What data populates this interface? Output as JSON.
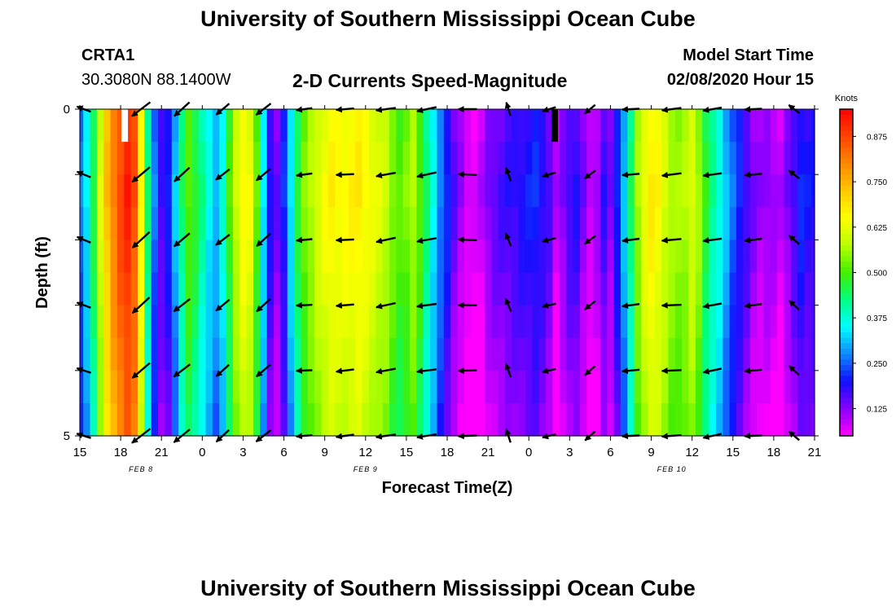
{
  "page": {
    "title_top": "University of Southern Mississippi Ocean Cube",
    "title_bottom": "University of Southern Mississippi Ocean Cube"
  },
  "header": {
    "station_id": "CRTA1",
    "station_coords": "30.3080N 88.1400W",
    "chart_title": "2-D Currents Speed-Magnitude",
    "model_label": "Model Start Time",
    "model_time": "02/08/2020 Hour 15"
  },
  "colors": {
    "bg": "#ffffff",
    "arrow": "#000000",
    "colormap": [
      "#ff00ff",
      "#8800ff",
      "#1010ff",
      "#1088ff",
      "#00ffff",
      "#00ff80",
      "#44ee00",
      "#b8ff00",
      "#ffff00",
      "#ffc800",
      "#ff8800",
      "#ff4400",
      "#ff0000"
    ]
  },
  "chart_data": {
    "type": "heatmap",
    "title": "2-D Currents Speed-Magnitude",
    "xlabel": "Forecast Time(Z)",
    "ylabel": "Depth (ft)",
    "x_tick_labels": [
      "15",
      "18",
      "21",
      "0",
      "3",
      "6",
      "9",
      "12",
      "15",
      "18",
      "21",
      "0",
      "3",
      "6",
      "9",
      "12",
      "15",
      "18",
      "21"
    ],
    "x_tick_hours": [
      0,
      3,
      6,
      9,
      12,
      15,
      18,
      21,
      24,
      27,
      30,
      33,
      36,
      39,
      42,
      45,
      48,
      51,
      54
    ],
    "xlim_hours": [
      0,
      54
    ],
    "date_labels": [
      {
        "text": "FEB 8",
        "hour": 4.5
      },
      {
        "text": "FEB 9",
        "hour": 21
      },
      {
        "text": "FEB 10",
        "hour": 43.5
      }
    ],
    "y_tick_labels": [
      "0",
      "5"
    ],
    "ylim": [
      0,
      5
    ],
    "depth_levels": [
      0,
      0.5,
      1,
      1.5,
      2,
      2.5,
      3,
      3.5,
      4,
      4.5
    ],
    "colorbar": {
      "label": "Knots",
      "ticks": [
        0.125,
        0.25,
        0.375,
        0.5,
        0.625,
        0.75,
        0.875
      ],
      "tick_labels": [
        "0.125",
        "0.250",
        "0.375",
        "0.500",
        "0.625",
        "0.750",
        "0.875"
      ],
      "range": [
        0.05,
        0.95
      ]
    },
    "speed_profile": [
      {
        "hour": 0,
        "speed": 0.25
      },
      {
        "hour": 0.5,
        "speed": 0.33
      },
      {
        "hour": 1,
        "speed": 0.45
      },
      {
        "hour": 1.5,
        "speed": 0.6
      },
      {
        "hour": 2,
        "speed": 0.72
      },
      {
        "hour": 2.5,
        "speed": 0.8
      },
      {
        "hour": 3,
        "speed": 0.86
      },
      {
        "hour": 3.5,
        "speed": 0.9
      },
      {
        "hour": 4,
        "speed": 0.85
      },
      {
        "hour": 4.5,
        "speed": 0.65
      },
      {
        "hour": 5,
        "speed": 0.42
      },
      {
        "hour": 5.5,
        "speed": 0.25
      },
      {
        "hour": 6,
        "speed": 0.16
      },
      {
        "hour": 6.5,
        "speed": 0.2
      },
      {
        "hour": 7,
        "speed": 0.3
      },
      {
        "hour": 7.5,
        "speed": 0.42
      },
      {
        "hour": 8,
        "speed": 0.5
      },
      {
        "hour": 8.5,
        "speed": 0.46
      },
      {
        "hour": 9,
        "speed": 0.4
      },
      {
        "hour": 9.5,
        "speed": 0.34
      },
      {
        "hour": 10,
        "speed": 0.3
      },
      {
        "hour": 10.5,
        "speed": 0.36
      },
      {
        "hour": 11,
        "speed": 0.48
      },
      {
        "hour": 11.5,
        "speed": 0.58
      },
      {
        "hour": 12,
        "speed": 0.64
      },
      {
        "hour": 12.5,
        "speed": 0.62
      },
      {
        "hour": 13,
        "speed": 0.5
      },
      {
        "hour": 13.5,
        "speed": 0.33
      },
      {
        "hour": 14,
        "speed": 0.18
      },
      {
        "hour": 14.5,
        "speed": 0.13
      },
      {
        "hour": 15,
        "speed": 0.2
      },
      {
        "hour": 15.5,
        "speed": 0.33
      },
      {
        "hour": 16,
        "speed": 0.45
      },
      {
        "hour": 16.5,
        "speed": 0.52
      },
      {
        "hour": 17,
        "speed": 0.56
      },
      {
        "hour": 17.5,
        "speed": 0.6
      },
      {
        "hour": 18,
        "speed": 0.63
      },
      {
        "hour": 18.5,
        "speed": 0.65
      },
      {
        "hour": 19,
        "speed": 0.64
      },
      {
        "hour": 19.5,
        "speed": 0.64
      },
      {
        "hour": 20,
        "speed": 0.65
      },
      {
        "hour": 20.5,
        "speed": 0.66
      },
      {
        "hour": 21,
        "speed": 0.64
      },
      {
        "hour": 21.5,
        "speed": 0.62
      },
      {
        "hour": 22,
        "speed": 0.6
      },
      {
        "hour": 22.5,
        "speed": 0.58
      },
      {
        "hour": 23,
        "speed": 0.53
      },
      {
        "hour": 23.5,
        "speed": 0.5
      },
      {
        "hour": 24,
        "speed": 0.52
      },
      {
        "hour": 24.5,
        "speed": 0.56
      },
      {
        "hour": 25,
        "speed": 0.5
      },
      {
        "hour": 25.5,
        "speed": 0.42
      },
      {
        "hour": 26,
        "speed": 0.34
      },
      {
        "hour": 26.5,
        "speed": 0.26
      },
      {
        "hour": 27,
        "speed": 0.2
      },
      {
        "hour": 27.5,
        "speed": 0.14
      },
      {
        "hour": 28,
        "speed": 0.1
      },
      {
        "hour": 28.5,
        "speed": 0.07
      },
      {
        "hour": 29,
        "speed": 0.06
      },
      {
        "hour": 29.5,
        "speed": 0.08
      },
      {
        "hour": 30,
        "speed": 0.12
      },
      {
        "hour": 30.5,
        "speed": 0.14
      },
      {
        "hour": 31,
        "speed": 0.15
      },
      {
        "hour": 31.5,
        "speed": 0.16
      },
      {
        "hour": 32,
        "speed": 0.17
      },
      {
        "hour": 32.5,
        "speed": 0.18
      },
      {
        "hour": 33,
        "speed": 0.19
      },
      {
        "hour": 33.5,
        "speed": 0.2
      },
      {
        "hour": 34,
        "speed": 0.18
      },
      {
        "hour": 34.5,
        "speed": 0.15
      },
      {
        "hour": 35,
        "speed": 0.08
      },
      {
        "hour": 35.5,
        "speed": 0.12
      },
      {
        "hour": 36,
        "speed": 0.16
      },
      {
        "hour": 36.5,
        "speed": 0.17
      },
      {
        "hour": 37,
        "speed": 0.12
      },
      {
        "hour": 37.5,
        "speed": 0.08
      },
      {
        "hour": 38,
        "speed": 0.1
      },
      {
        "hour": 38.5,
        "speed": 0.16
      },
      {
        "hour": 39,
        "speed": 0.12
      },
      {
        "hour": 39.5,
        "speed": 0.2
      },
      {
        "hour": 40,
        "speed": 0.3
      },
      {
        "hour": 40.5,
        "speed": 0.42
      },
      {
        "hour": 41,
        "speed": 0.55
      },
      {
        "hour": 41.5,
        "speed": 0.62
      },
      {
        "hour": 42,
        "speed": 0.66
      },
      {
        "hour": 42.5,
        "speed": 0.64
      },
      {
        "hour": 43,
        "speed": 0.6
      },
      {
        "hour": 43.5,
        "speed": 0.56
      },
      {
        "hour": 44,
        "speed": 0.55
      },
      {
        "hour": 44.5,
        "speed": 0.56
      },
      {
        "hour": 45,
        "speed": 0.6
      },
      {
        "hour": 45.5,
        "speed": 0.55
      },
      {
        "hour": 46,
        "speed": 0.46
      },
      {
        "hour": 46.5,
        "speed": 0.4
      },
      {
        "hour": 47,
        "speed": 0.36
      },
      {
        "hour": 47.5,
        "speed": 0.3
      },
      {
        "hour": 48,
        "speed": 0.24
      },
      {
        "hour": 48.5,
        "speed": 0.2
      },
      {
        "hour": 49,
        "speed": 0.16
      },
      {
        "hour": 49.5,
        "speed": 0.12
      },
      {
        "hour": 50,
        "speed": 0.1
      },
      {
        "hour": 50.5,
        "speed": 0.11
      },
      {
        "hour": 51,
        "speed": 0.1
      },
      {
        "hour": 51.5,
        "speed": 0.08
      },
      {
        "hour": 52,
        "speed": 0.12
      },
      {
        "hour": 52.5,
        "speed": 0.16
      },
      {
        "hour": 53,
        "speed": 0.2
      },
      {
        "hour": 53.5,
        "speed": 0.18
      },
      {
        "hour": 54,
        "speed": 0.18
      }
    ],
    "depth_speed_adjustment": [
      0,
      0.01,
      0.02,
      0.01,
      0.0,
      -0.01,
      -0.02,
      -0.03,
      -0.04,
      -0.05
    ],
    "arrow_hours": [
      0.3,
      4.5,
      7.5,
      10.5,
      13.5,
      16.5,
      19.5,
      22.5,
      25.5,
      28.5,
      31.5,
      34.5,
      37.5,
      40.5,
      43.5,
      46.5,
      49.5,
      52.5
    ],
    "arrow_depths": [
      0,
      1,
      2,
      3,
      4,
      5
    ],
    "arrow_direction_deg": [
      200,
      140,
      140,
      140,
      140,
      175,
      175,
      170,
      170,
      180,
      250,
      165,
      140,
      175,
      175,
      170,
      175,
      220
    ],
    "arrow_speed": [
      0.25,
      0.9,
      0.7,
      0.45,
      0.55,
      0.35,
      0.5,
      0.64,
      0.64,
      0.55,
      0.2,
      0.18,
      0.16,
      0.45,
      0.62,
      0.56,
      0.45,
      0.15
    ],
    "missing_cells": [
      {
        "hour": 3.3,
        "depth_from": 0,
        "depth_to": 0.5,
        "color": "#ffffff"
      },
      {
        "hour": 34.9,
        "depth_from": 0,
        "depth_to": 0.5,
        "color": "#000000"
      }
    ]
  }
}
